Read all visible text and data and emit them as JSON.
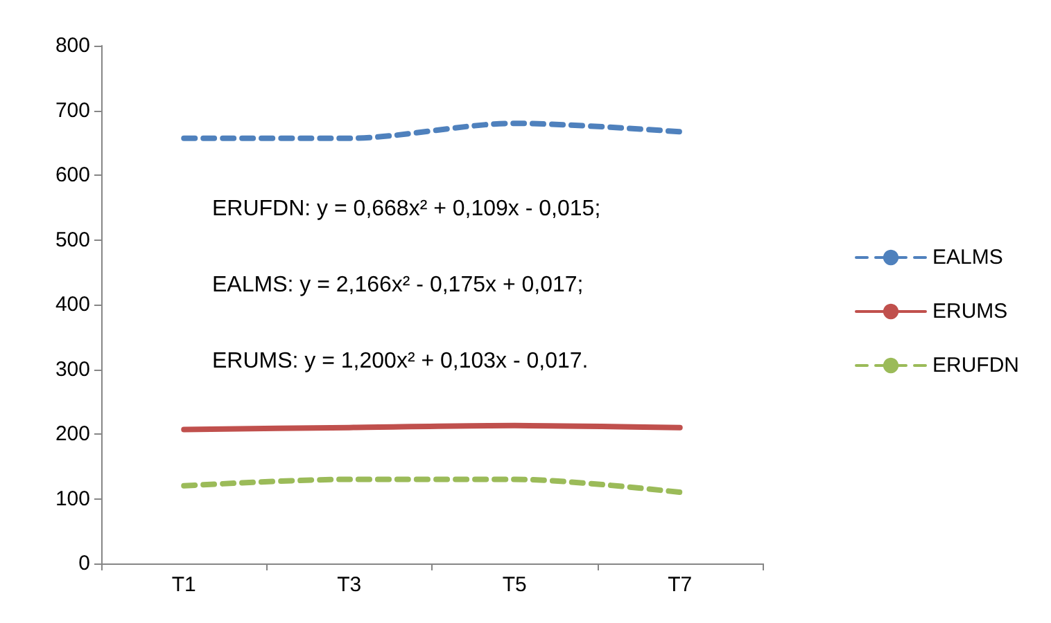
{
  "chart_data": {
    "type": "line",
    "categories": [
      "T1",
      "T3",
      "T5",
      "T7"
    ],
    "series": [
      {
        "name": "EALMS",
        "color": "#4f81bd",
        "line_style": "dashed",
        "values": [
          657,
          657,
          680,
          667
        ]
      },
      {
        "name": "ERUMS",
        "color": "#c0504d",
        "line_style": "solid",
        "values": [
          207,
          210,
          213,
          210
        ]
      },
      {
        "name": "ERUFDN",
        "color": "#9bbb59",
        "line_style": "dashed",
        "values": [
          120,
          130,
          130,
          110
        ]
      }
    ],
    "ylim": [
      0,
      800
    ],
    "yticks": [
      0,
      100,
      200,
      300,
      400,
      500,
      600,
      700,
      800
    ],
    "grid": false,
    "legend": "right",
    "marker": "none",
    "annotations": [
      "ERUFDN: y = 0,668x² + 0,109x - 0,015;",
      "EALMS: y = 2,166x² - 0,175x + 0,017;",
      "ERUMS: y = 1,200x² + 0,103x - 0,017."
    ]
  }
}
